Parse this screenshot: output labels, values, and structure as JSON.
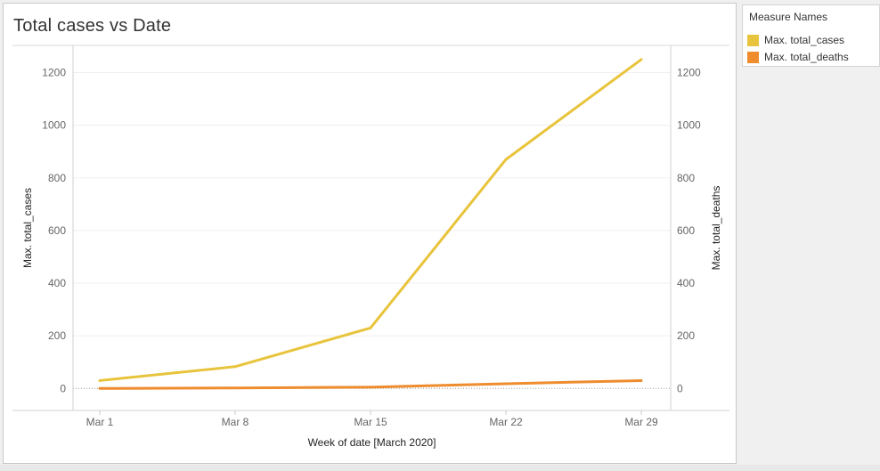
{
  "title": "Total cases vs Date",
  "legend": {
    "title": "Measure Names",
    "items": [
      {
        "label": "Max. total_cases",
        "color": "#E8C43C"
      },
      {
        "label": "Max. total_deaths",
        "color": "#EE8C2E"
      }
    ]
  },
  "chart_data": {
    "type": "line",
    "title": "Total cases vs Date",
    "xlabel": "Week of date [March 2020]",
    "ylabel": "Max. total_cases",
    "ylabel_right": "Max. total_deaths",
    "categories": [
      "Mar 1",
      "Mar 8",
      "Mar 15",
      "Mar 22",
      "Mar 29"
    ],
    "series": [
      {
        "name": "Max. total_cases",
        "axis": "left",
        "color": "#E8C43C",
        "values": [
          30,
          83,
          230,
          870,
          1250
        ]
      },
      {
        "name": "Max. total_deaths",
        "axis": "right",
        "color": "#EE8C2E",
        "values": [
          0,
          2,
          5,
          18,
          30
        ]
      }
    ],
    "ylim": [
      -70,
      1300
    ],
    "ylim_right": [
      -70,
      1300
    ],
    "yticks": [
      0,
      200,
      400,
      600,
      800,
      1000,
      1200
    ],
    "yticks_right": [
      0,
      200,
      400,
      600,
      800,
      1000,
      1200
    ],
    "grid": true,
    "zero_line": "dotted",
    "legend_position": "right"
  }
}
